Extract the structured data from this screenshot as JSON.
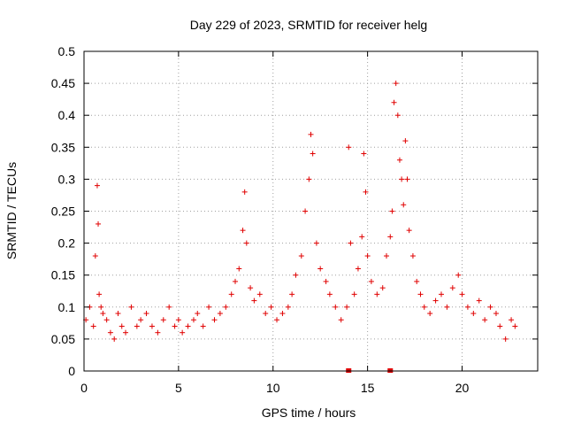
{
  "chart_data": {
    "type": "scatter",
    "title": "Day 229 of 2023, SRMTID for receiver helg",
    "xlabel": "GPS time / hours",
    "ylabel": "SRMTID / TECUs",
    "xlim": [
      0,
      24
    ],
    "ylim": [
      0,
      0.5
    ],
    "x_ticks": [
      0,
      5,
      10,
      15,
      20
    ],
    "x_tick_labels": [
      "0",
      "5",
      "10",
      "15",
      "20"
    ],
    "y_ticks": [
      0,
      0.05,
      0.1,
      0.15,
      0.2,
      0.25,
      0.3,
      0.35,
      0.4,
      0.45,
      0.5
    ],
    "y_tick_labels": [
      "0",
      "0.05",
      "0.1",
      "0.15",
      "0.2",
      "0.25",
      "0.3",
      "0.35",
      "0.4",
      "0.45",
      "0.5"
    ],
    "grid": true,
    "marker": "+",
    "series": [
      {
        "name": "SRMTID",
        "color": "#e00000",
        "x": [
          0.1,
          0.3,
          0.5,
          0.6,
          0.7,
          0.75,
          0.8,
          0.9,
          1.0,
          1.2,
          1.4,
          1.6,
          1.8,
          2.0,
          2.2,
          2.5,
          2.8,
          3.0,
          3.3,
          3.6,
          3.9,
          4.2,
          4.5,
          4.8,
          5.0,
          5.2,
          5.5,
          5.8,
          6.0,
          6.3,
          6.6,
          6.9,
          7.2,
          7.5,
          7.8,
          8.0,
          8.2,
          8.4,
          8.5,
          8.6,
          8.8,
          9.0,
          9.3,
          9.6,
          9.9,
          10.2,
          10.5,
          10.8,
          11.0,
          11.2,
          11.5,
          11.7,
          11.9,
          12.0,
          12.1,
          12.3,
          12.5,
          12.8,
          13.0,
          13.3,
          13.6,
          13.9,
          14.0,
          14.1,
          14.3,
          14.5,
          14.7,
          14.8,
          14.9,
          15.0,
          15.2,
          15.5,
          15.8,
          16.0,
          16.2,
          16.3,
          16.4,
          16.5,
          16.6,
          16.7,
          16.8,
          16.9,
          17.0,
          17.1,
          17.2,
          17.4,
          17.6,
          17.8,
          18.0,
          18.3,
          18.6,
          18.9,
          19.2,
          19.5,
          19.8,
          20.0,
          20.3,
          20.6,
          20.9,
          21.2,
          21.5,
          21.8,
          22.0,
          22.3,
          22.6,
          22.8
        ],
        "y": [
          0.08,
          0.1,
          0.07,
          0.18,
          0.29,
          0.23,
          0.12,
          0.1,
          0.09,
          0.08,
          0.06,
          0.05,
          0.09,
          0.07,
          0.06,
          0.1,
          0.07,
          0.08,
          0.09,
          0.07,
          0.06,
          0.08,
          0.1,
          0.07,
          0.08,
          0.06,
          0.07,
          0.08,
          0.09,
          0.07,
          0.1,
          0.08,
          0.09,
          0.1,
          0.12,
          0.14,
          0.16,
          0.22,
          0.28,
          0.2,
          0.13,
          0.11,
          0.12,
          0.09,
          0.1,
          0.08,
          0.09,
          0.1,
          0.12,
          0.15,
          0.18,
          0.25,
          0.3,
          0.37,
          0.34,
          0.2,
          0.16,
          0.14,
          0.12,
          0.1,
          0.08,
          0.1,
          0.35,
          0.2,
          0.12,
          0.16,
          0.21,
          0.34,
          0.28,
          0.18,
          0.14,
          0.12,
          0.13,
          0.18,
          0.21,
          0.25,
          0.42,
          0.45,
          0.4,
          0.33,
          0.3,
          0.26,
          0.36,
          0.3,
          0.22,
          0.18,
          0.14,
          0.12,
          0.1,
          0.09,
          0.11,
          0.12,
          0.1,
          0.13,
          0.15,
          0.12,
          0.1,
          0.09,
          0.11,
          0.08,
          0.1,
          0.09,
          0.07,
          0.05,
          0.08,
          0.07
        ]
      }
    ],
    "zero_markers_x": [
      14.0,
      16.2
    ]
  }
}
